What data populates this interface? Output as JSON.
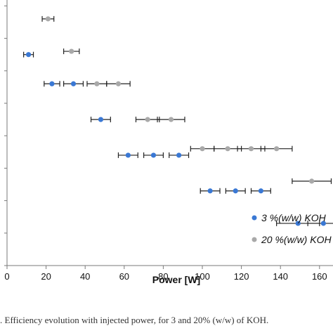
{
  "chart_data": {
    "type": "scatter",
    "xlabel": "Power [W]",
    "xlim": [
      0,
      170
    ],
    "x_ticks": [
      "0",
      "20",
      "40",
      "60",
      "80",
      "100",
      "120",
      "140",
      "160"
    ],
    "y_gridlines": false,
    "legend_placement": "bottom-right",
    "series": [
      {
        "name": "3 %(w/w) KOH",
        "color": "#3a78d4",
        "points": [
          {
            "x": 11,
            "y": 6.5,
            "xerr": 2.5
          },
          {
            "x": 23,
            "y": 5.6,
            "xerr": 4
          },
          {
            "x": 34,
            "y": 5.6,
            "xerr": 5
          },
          {
            "x": 48,
            "y": 4.5,
            "xerr": 5
          },
          {
            "x": 62,
            "y": 3.4,
            "xerr": 5
          },
          {
            "x": 75,
            "y": 3.4,
            "xerr": 5
          },
          {
            "x": 88,
            "y": 3.4,
            "xerr": 5
          },
          {
            "x": 104,
            "y": 2.3,
            "xerr": 5
          },
          {
            "x": 117,
            "y": 2.3,
            "xerr": 5
          },
          {
            "x": 130,
            "y": 2.3,
            "xerr": 5
          },
          {
            "x": 149,
            "y": 1.3,
            "xerr": 11
          },
          {
            "x": 162,
            "y": 1.3,
            "xerr": 8
          }
        ]
      },
      {
        "name": "20 %(w/w) KOH",
        "color": "#a9a9a9",
        "points": [
          {
            "x": 21,
            "y": 7.6,
            "xerr": 3
          },
          {
            "x": 33,
            "y": 6.6,
            "xerr": 4
          },
          {
            "x": 46,
            "y": 5.6,
            "xerr": 5
          },
          {
            "x": 57,
            "y": 5.6,
            "xerr": 6
          },
          {
            "x": 72,
            "y": 4.5,
            "xerr": 6
          },
          {
            "x": 84,
            "y": 4.5,
            "xerr": 7
          },
          {
            "x": 100,
            "y": 3.6,
            "xerr": 6
          },
          {
            "x": 113,
            "y": 3.6,
            "xerr": 7
          },
          {
            "x": 125,
            "y": 3.6,
            "xerr": 7
          },
          {
            "x": 138,
            "y": 3.6,
            "xerr": 8
          },
          {
            "x": 156,
            "y": 2.6,
            "xerr": 10
          }
        ]
      }
    ]
  },
  "legend": {
    "entry_1": "3 %(w/w) KOH",
    "entry_2": "20 %(w/w) KOH"
  },
  "caption": ". Efficiency evolution with injected power, for 3 and 20% (w/w) of KOH."
}
